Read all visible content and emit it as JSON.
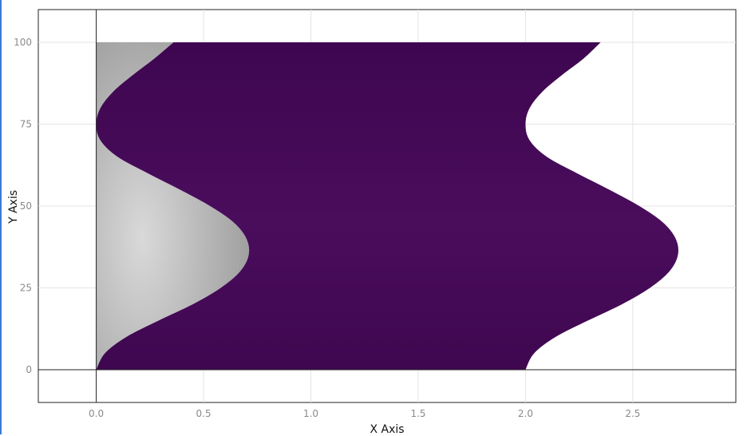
{
  "chart_data": {
    "type": "area",
    "title": "",
    "xlabel": "X Axis",
    "ylabel": "Y Axis",
    "xlim": [
      -0.27,
      2.98
    ],
    "ylim": [
      -10,
      110
    ],
    "xticks": [
      "0.0",
      "0.5",
      "1.0",
      "1.5",
      "2.0",
      "2.5"
    ],
    "xtick_values": [
      0,
      0.5,
      1.0,
      1.5,
      2.0,
      2.5
    ],
    "yticks": [
      "0",
      "25",
      "50",
      "75",
      "100"
    ],
    "ytick_values": [
      0,
      25,
      50,
      75,
      100
    ],
    "grid": true,
    "series": [
      {
        "fill": "#c8c8c8",
        "y": [
          0,
          5,
          10,
          15,
          20,
          25,
          30,
          35,
          40,
          45,
          50,
          55,
          60,
          65,
          70,
          75,
          80,
          85,
          90,
          95,
          100
        ],
        "x_left": [
          0,
          0,
          0,
          0,
          0,
          0,
          0,
          0,
          0,
          0,
          0,
          0,
          0,
          0,
          0,
          0,
          0,
          0,
          0,
          0,
          0
        ],
        "x_right": [
          0.0,
          0.04,
          0.14,
          0.29,
          0.45,
          0.58,
          0.67,
          0.71,
          0.7,
          0.64,
          0.53,
          0.39,
          0.24,
          0.1,
          0.02,
          0.0,
          0.02,
          0.08,
          0.17,
          0.27,
          0.36
        ]
      },
      {
        "fill": "#470a56",
        "y": [
          0,
          5,
          10,
          15,
          20,
          25,
          30,
          35,
          40,
          45,
          50,
          55,
          60,
          65,
          70,
          75,
          80,
          85,
          90,
          95,
          100
        ],
        "x_left": [
          0.0,
          0.04,
          0.14,
          0.29,
          0.45,
          0.58,
          0.67,
          0.71,
          0.7,
          0.64,
          0.53,
          0.39,
          0.24,
          0.1,
          0.02,
          0.0,
          0.02,
          0.08,
          0.17,
          0.27,
          0.36
        ],
        "x_right": [
          2.0,
          2.04,
          2.14,
          2.29,
          2.45,
          2.58,
          2.67,
          2.71,
          2.7,
          2.64,
          2.53,
          2.39,
          2.24,
          2.1,
          2.02,
          2.0,
          2.02,
          2.08,
          2.17,
          2.27,
          2.35
        ]
      }
    ]
  }
}
